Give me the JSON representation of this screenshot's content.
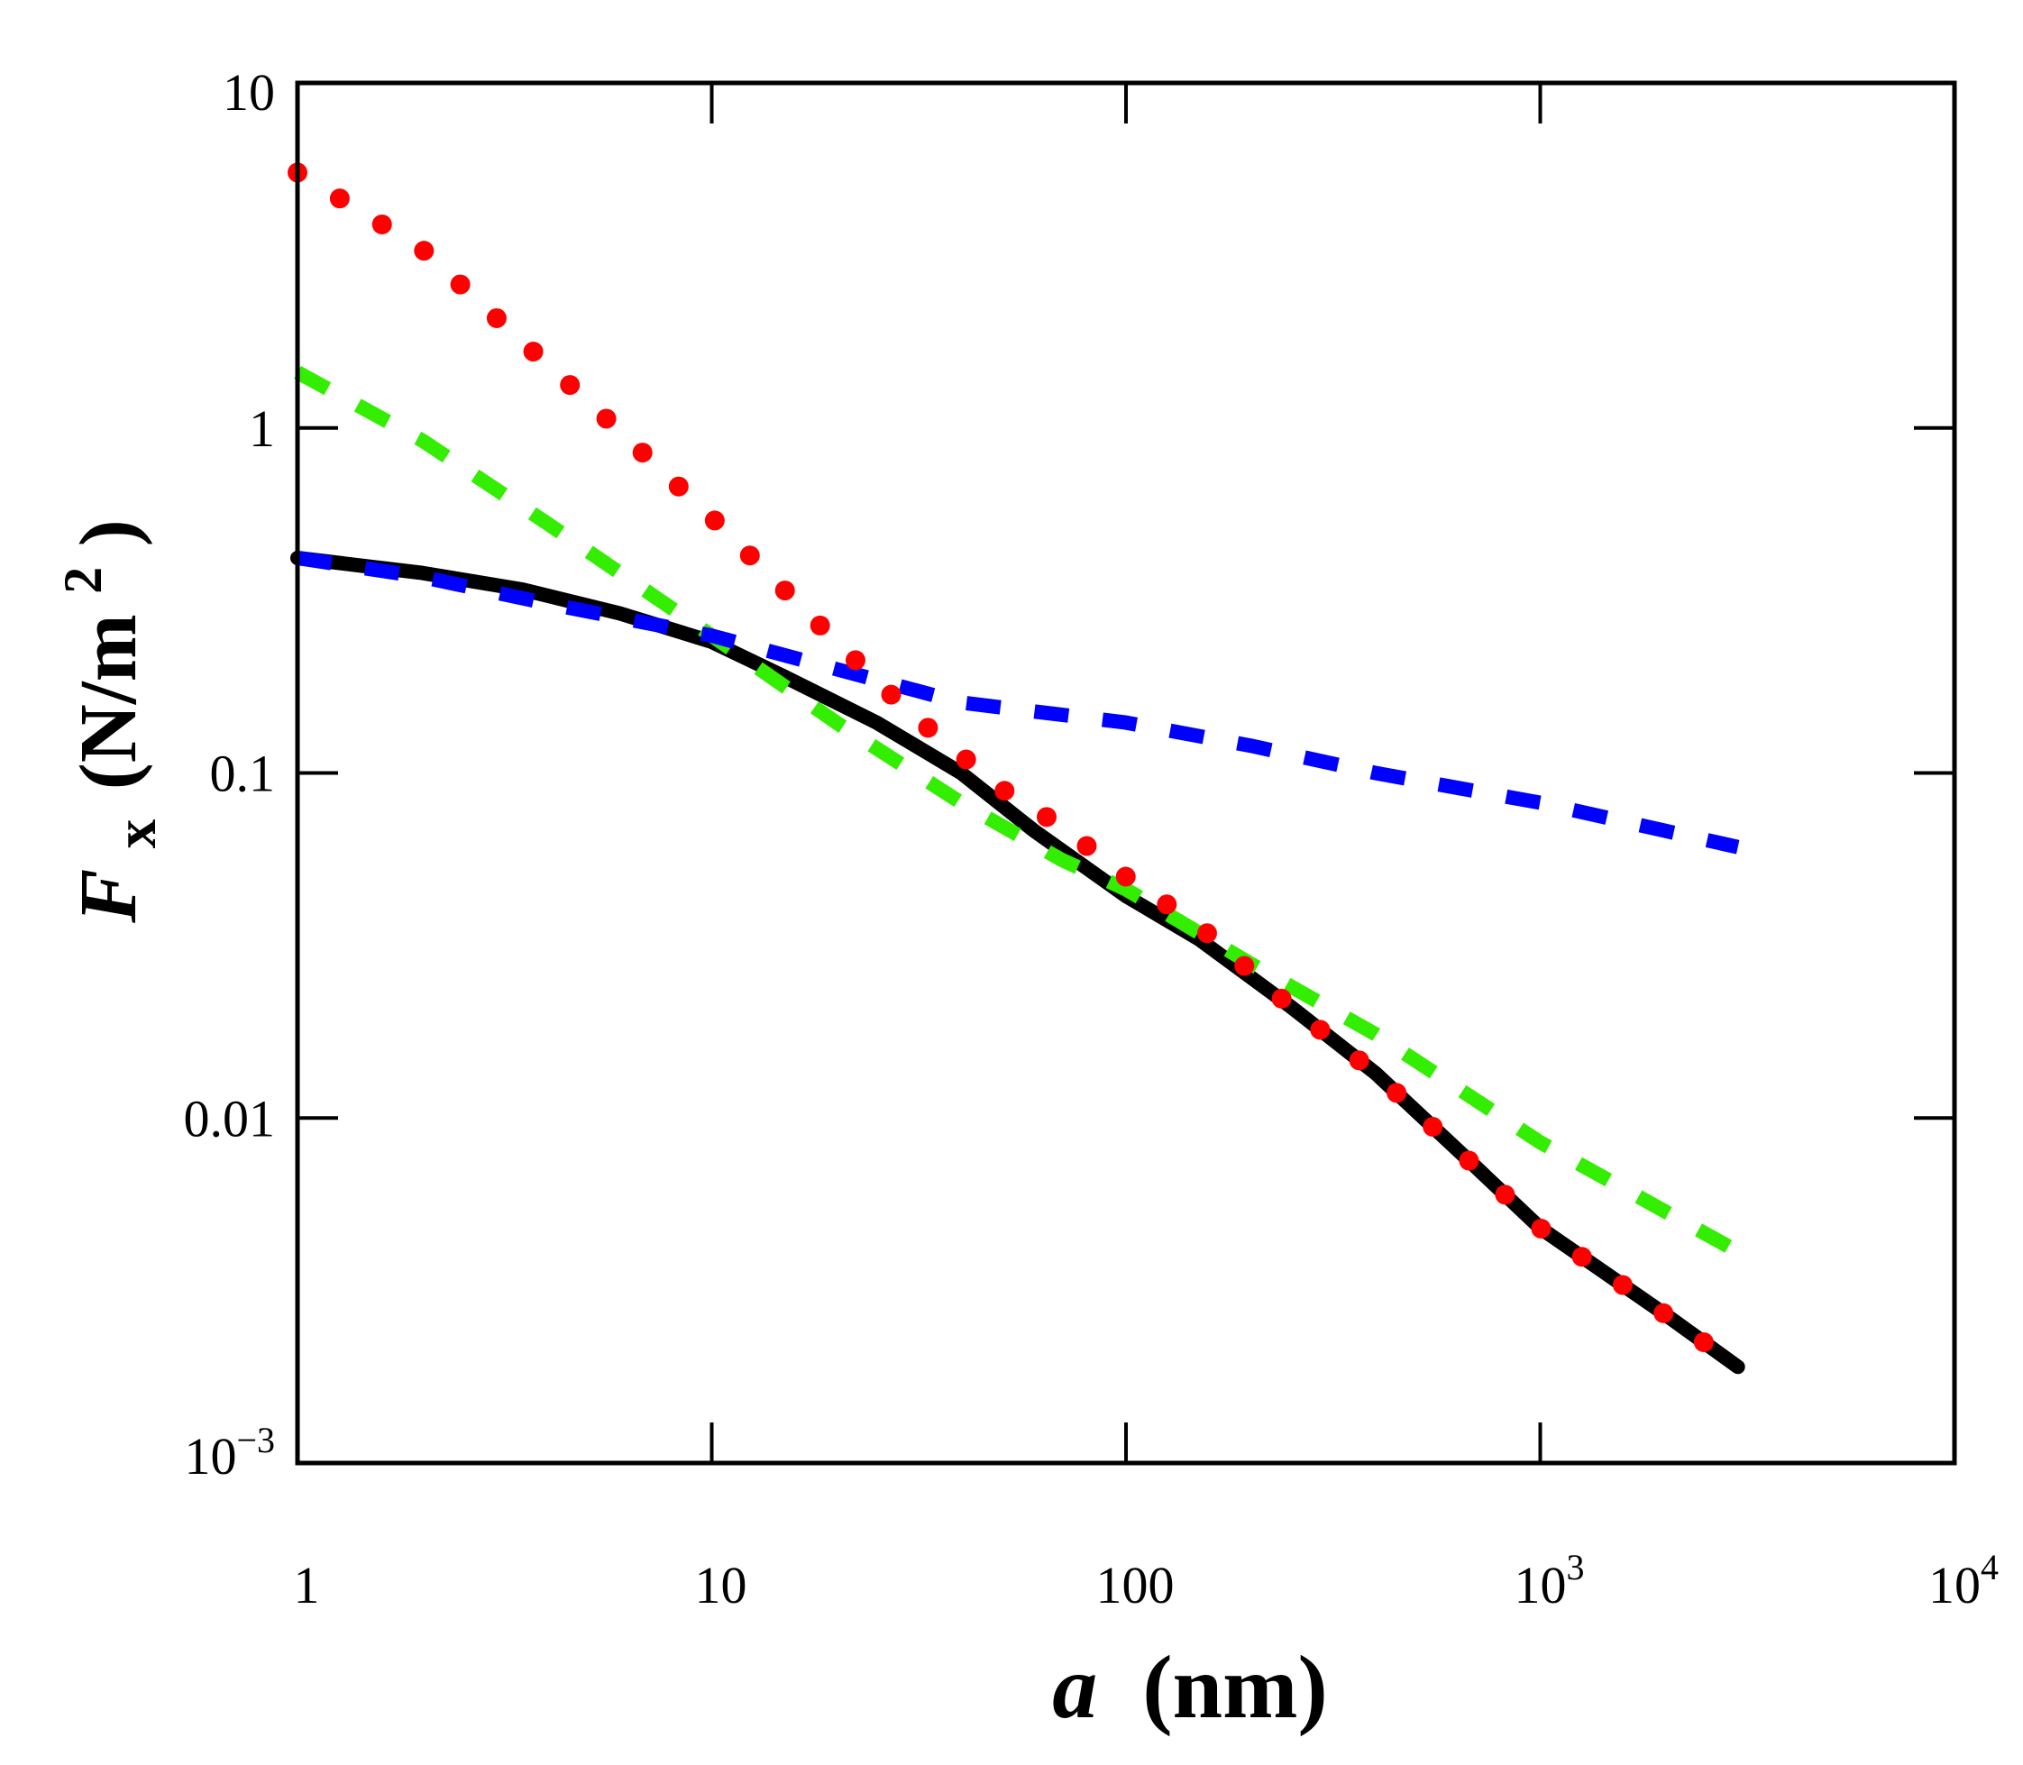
{
  "chart_data": {
    "type": "line",
    "title": "",
    "xlabel": {
      "symbol": "a",
      "unit": "(nm)"
    },
    "ylabel": {
      "symbol": "F",
      "subscript": "x",
      "unit_prefix": "(N/m",
      "unit_power": "2",
      "unit_suffix": ")"
    },
    "xscale": "log",
    "yscale": "log",
    "xlim": [
      1,
      10000
    ],
    "ylim": [
      0.001,
      10
    ],
    "x_ticks": [
      {
        "value": 1,
        "base": "1",
        "exp": ""
      },
      {
        "value": 10,
        "base": "10",
        "exp": ""
      },
      {
        "value": 100,
        "base": "100",
        "exp": ""
      },
      {
        "value": 1000,
        "base": "10",
        "exp": "3"
      },
      {
        "value": 10000,
        "base": "10",
        "exp": "4"
      }
    ],
    "y_ticks": [
      {
        "value": 10,
        "base": "10",
        "exp": ""
      },
      {
        "value": 1,
        "base": "1",
        "exp": ""
      },
      {
        "value": 0.1,
        "base": "0.1",
        "exp": ""
      },
      {
        "value": 0.01,
        "base": "0.01",
        "exp": ""
      },
      {
        "value": 0.001,
        "base": "10",
        "exp": "−3"
      }
    ],
    "grid": false,
    "legend": "none",
    "series": [
      {
        "name": "black solid",
        "color": "#000000",
        "style": "solid",
        "x": [
          1,
          2,
          3.5,
          6,
          10,
          15,
          25,
          40,
          60,
          100,
          150,
          250,
          400,
          700,
          1000,
          2000,
          3000
        ],
        "y": [
          0.42,
          0.38,
          0.34,
          0.29,
          0.24,
          0.19,
          0.14,
          0.1,
          0.068,
          0.044,
          0.033,
          0.021,
          0.0135,
          0.0072,
          0.0048,
          0.0027,
          0.0019
        ]
      },
      {
        "name": "red dotted",
        "color": "#ff0000",
        "style": "dotted",
        "x": [
          1,
          2,
          3,
          5,
          10,
          20,
          30,
          50,
          70,
          100,
          150,
          250,
          400,
          700,
          1000,
          2000,
          3000
        ],
        "y": [
          5.5,
          3.3,
          2.1,
          1.2,
          0.55,
          0.24,
          0.15,
          0.09,
          0.07,
          0.05,
          0.036,
          0.021,
          0.0135,
          0.0072,
          0.0048,
          0.0027,
          0.0019
        ]
      },
      {
        "name": "green dashed",
        "color": "#33ee00",
        "style": "dashed",
        "x": [
          1,
          2,
          4,
          10,
          20,
          40,
          70,
          100,
          200,
          400,
          1000,
          3000
        ],
        "y": [
          1.45,
          0.92,
          0.53,
          0.25,
          0.14,
          0.082,
          0.056,
          0.046,
          0.028,
          0.0175,
          0.0085,
          0.0041
        ]
      },
      {
        "name": "blue dashed",
        "color": "#0000ff",
        "style": "dashed",
        "x": [
          1,
          2,
          4,
          10,
          20,
          40,
          100,
          200,
          400,
          1000,
          2000,
          3000
        ],
        "y": [
          0.42,
          0.37,
          0.31,
          0.25,
          0.2,
          0.16,
          0.14,
          0.12,
          0.1,
          0.082,
          0.068,
          0.061
        ]
      }
    ]
  }
}
